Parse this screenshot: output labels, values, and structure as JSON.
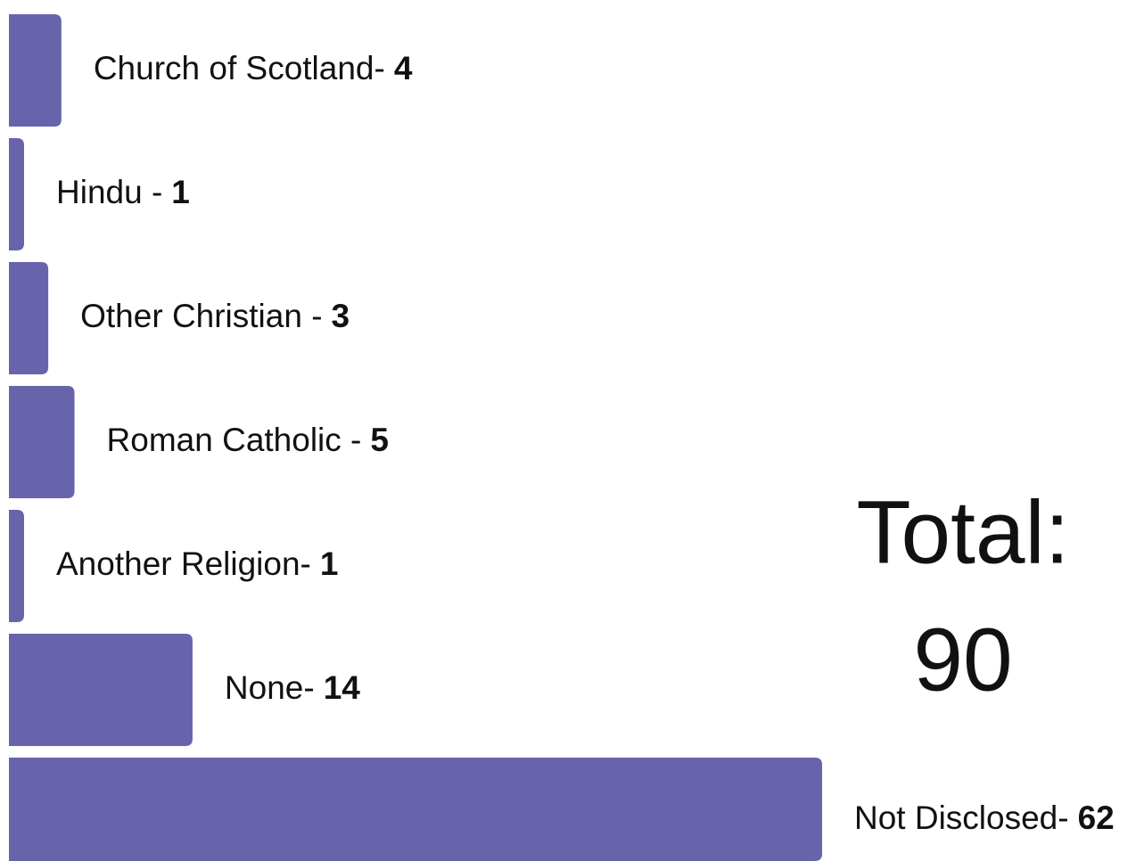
{
  "chart_data": {
    "type": "bar",
    "orientation": "horizontal",
    "categories": [
      "Church of Scotland-",
      "Hindu -",
      "Other Christian -",
      "Roman Catholic -",
      "Another Religion-",
      "None-",
      "Not Disclosed-"
    ],
    "values": [
      4,
      1,
      3,
      5,
      1,
      14,
      62
    ],
    "color": "#6764ac",
    "total_label": "Total:",
    "total": 90
  }
}
